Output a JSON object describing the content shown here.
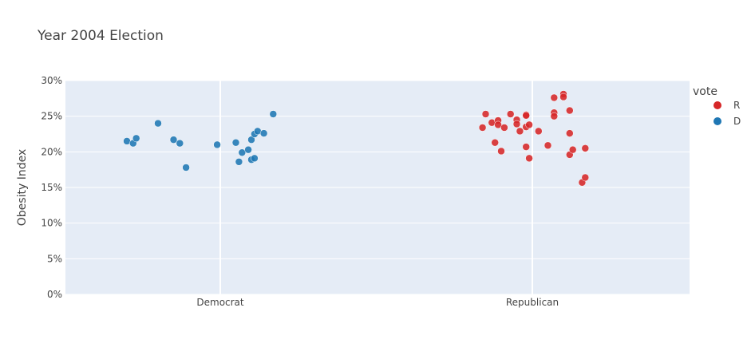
{
  "chart_data": {
    "type": "scatter",
    "title": "Year 2004 Election",
    "xlabel": "",
    "ylabel": "Obesity Index",
    "categories": [
      "Democrat",
      "Republican"
    ],
    "y_ticks": [
      "0%",
      "5%",
      "10%",
      "15%",
      "20%",
      "25%",
      "30%"
    ],
    "ylim": [
      0,
      0.3
    ],
    "grid": true,
    "legend": {
      "title": "vote",
      "placement": "top-right",
      "entries": [
        {
          "label": "R",
          "color": "#d62728"
        },
        {
          "label": "D",
          "color": "#1f77b4"
        }
      ]
    },
    "series": [
      {
        "name": "D",
        "color": "#1f77b4",
        "points": [
          {
            "x": -0.3,
            "y": 0.215
          },
          {
            "x": -0.28,
            "y": 0.212
          },
          {
            "x": -0.27,
            "y": 0.219
          },
          {
            "x": -0.2,
            "y": 0.24
          },
          {
            "x": -0.15,
            "y": 0.217
          },
          {
            "x": -0.13,
            "y": 0.212
          },
          {
            "x": -0.11,
            "y": 0.178
          },
          {
            "x": -0.01,
            "y": 0.21
          },
          {
            "x": 0.05,
            "y": 0.213
          },
          {
            "x": 0.06,
            "y": 0.186
          },
          {
            "x": 0.07,
            "y": 0.199
          },
          {
            "x": 0.09,
            "y": 0.203
          },
          {
            "x": 0.1,
            "y": 0.217
          },
          {
            "x": 0.1,
            "y": 0.189
          },
          {
            "x": 0.11,
            "y": 0.225
          },
          {
            "x": 0.11,
            "y": 0.191
          },
          {
            "x": 0.12,
            "y": 0.229
          },
          {
            "x": 0.14,
            "y": 0.226
          },
          {
            "x": 0.17,
            "y": 0.253
          }
        ]
      },
      {
        "name": "R",
        "color": "#d62728",
        "points": [
          {
            "x": -0.16,
            "y": 0.234
          },
          {
            "x": -0.15,
            "y": 0.253
          },
          {
            "x": -0.13,
            "y": 0.241
          },
          {
            "x": -0.12,
            "y": 0.213
          },
          {
            "x": -0.11,
            "y": 0.244
          },
          {
            "x": -0.11,
            "y": 0.238
          },
          {
            "x": -0.1,
            "y": 0.201
          },
          {
            "x": -0.09,
            "y": 0.234
          },
          {
            "x": -0.07,
            "y": 0.253
          },
          {
            "x": -0.05,
            "y": 0.245
          },
          {
            "x": -0.05,
            "y": 0.239
          },
          {
            "x": -0.04,
            "y": 0.229
          },
          {
            "x": -0.02,
            "y": 0.252
          },
          {
            "x": -0.02,
            "y": 0.251
          },
          {
            "x": -0.02,
            "y": 0.235
          },
          {
            "x": -0.02,
            "y": 0.207
          },
          {
            "x": -0.01,
            "y": 0.238
          },
          {
            "x": -0.01,
            "y": 0.191
          },
          {
            "x": 0.02,
            "y": 0.229
          },
          {
            "x": 0.05,
            "y": 0.209
          },
          {
            "x": 0.07,
            "y": 0.276
          },
          {
            "x": 0.07,
            "y": 0.255
          },
          {
            "x": 0.07,
            "y": 0.25
          },
          {
            "x": 0.1,
            "y": 0.281
          },
          {
            "x": 0.1,
            "y": 0.277
          },
          {
            "x": 0.12,
            "y": 0.258
          },
          {
            "x": 0.12,
            "y": 0.226
          },
          {
            "x": 0.12,
            "y": 0.196
          },
          {
            "x": 0.13,
            "y": 0.203
          },
          {
            "x": 0.16,
            "y": 0.157
          },
          {
            "x": 0.17,
            "y": 0.205
          },
          {
            "x": 0.17,
            "y": 0.164
          }
        ]
      }
    ]
  }
}
